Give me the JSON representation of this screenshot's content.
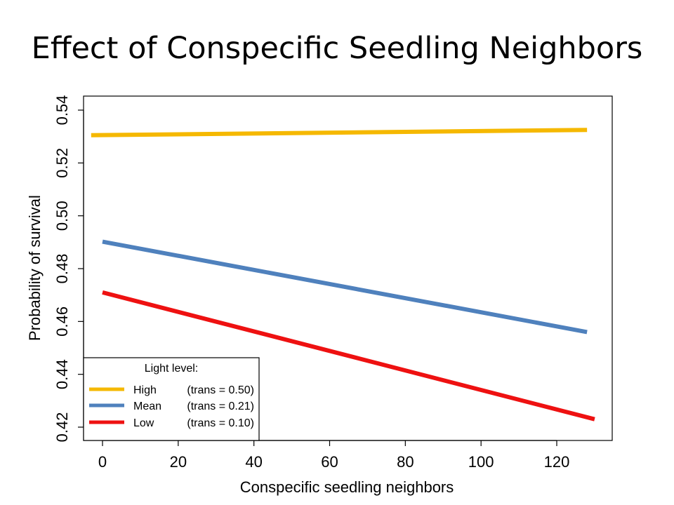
{
  "title": "Effect of Conspecific Seedling Neighbors",
  "chart_data": {
    "type": "line",
    "xlabel": "Conspecific seedling neighbors",
    "ylabel": "Probability of survival",
    "xlim": [
      -5,
      135
    ],
    "ylim": [
      0.415,
      0.545
    ],
    "xticks": [
      0,
      20,
      40,
      60,
      80,
      100,
      120
    ],
    "yticks": [
      0.42,
      0.44,
      0.46,
      0.48,
      0.5,
      0.52,
      0.54
    ],
    "xtick_labels": [
      "0",
      "20",
      "40",
      "60",
      "80",
      "100",
      "120"
    ],
    "ytick_labels": [
      "0.42",
      "0.44",
      "0.46",
      "0.48",
      "0.50",
      "0.52",
      "0.54"
    ],
    "grid": false,
    "legend": {
      "title": "Light level:",
      "placement": "bottom-left",
      "entries": [
        {
          "label": "High",
          "detail": "(trans = 0.50)"
        },
        {
          "label": "Mean",
          "detail": "(trans = 0.21)"
        },
        {
          "label": "Low",
          "detail": "(trans = 0.10)"
        }
      ]
    },
    "series": [
      {
        "name": "High",
        "color": "#F5B800",
        "x": [
          -3,
          128
        ],
        "y": [
          0.5305,
          0.5325
        ]
      },
      {
        "name": "Mean",
        "color": "#4F81BD",
        "x": [
          0,
          128
        ],
        "y": [
          0.4902,
          0.456
        ]
      },
      {
        "name": "Low",
        "color": "#EE1111",
        "x": [
          0,
          130
        ],
        "y": [
          0.471,
          0.423
        ]
      }
    ]
  }
}
